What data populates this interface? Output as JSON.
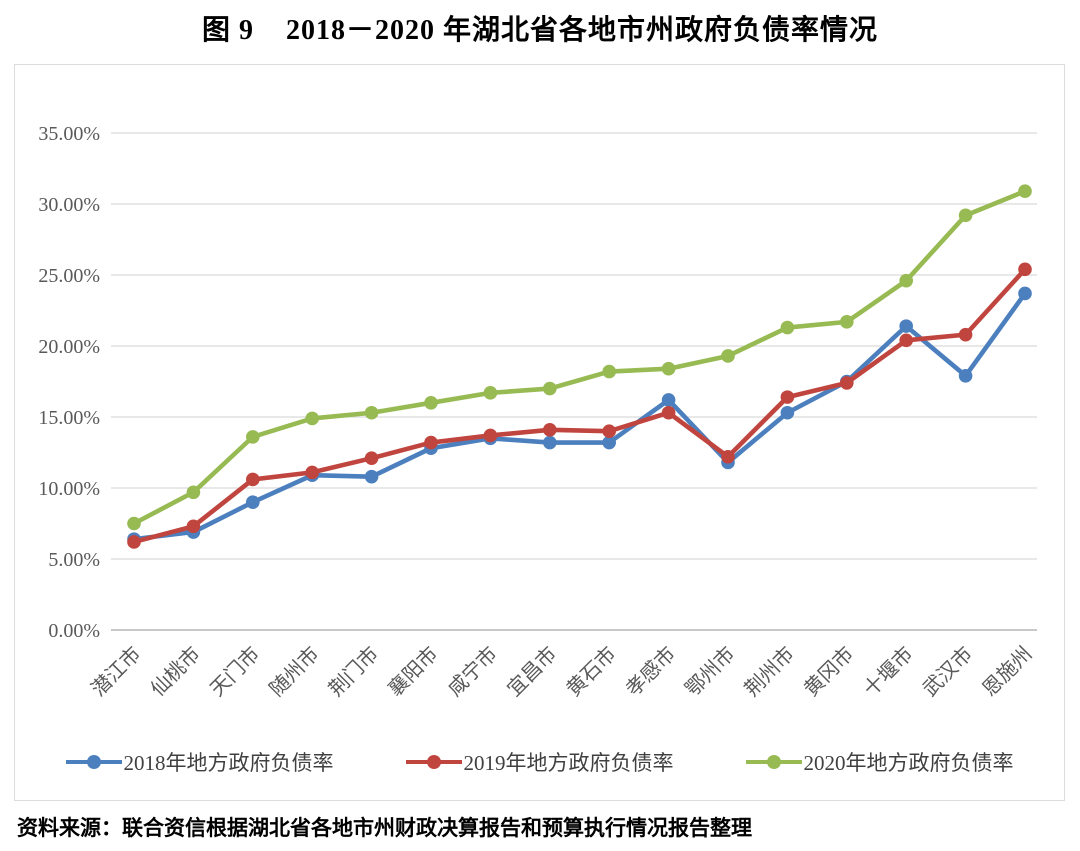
{
  "figure": {
    "title": "图 9    2018－2020 年湖北省各地市州政府负债率情况",
    "source_note": "资料来源：联合资信根据湖北省各地市州财政决算报告和预算执行情况报告整理"
  },
  "chart_data": {
    "type": "line",
    "title": "2018－2020 年湖北省各地市州政府负债率情况",
    "categories": [
      "潜江市",
      "仙桃市",
      "天门市",
      "随州市",
      "荆门市",
      "襄阳市",
      "咸宁市",
      "宜昌市",
      "黄石市",
      "孝感市",
      "鄂州市",
      "荆州市",
      "黄冈市",
      "十堰市",
      "武汉市",
      "恩施州"
    ],
    "series": [
      {
        "name": "2018年地方政府负债率",
        "color": "#4C7FBE",
        "values": [
          6.4,
          6.9,
          9.0,
          10.9,
          10.8,
          12.8,
          13.5,
          13.2,
          13.2,
          16.2,
          11.8,
          15.3,
          17.5,
          21.4,
          17.9,
          23.7
        ]
      },
      {
        "name": "2019年地方政府负债率",
        "color": "#C1453F",
        "values": [
          6.2,
          7.3,
          10.6,
          11.1,
          12.1,
          13.2,
          13.7,
          14.1,
          14.0,
          15.3,
          12.2,
          16.4,
          17.4,
          20.4,
          20.8,
          25.4
        ]
      },
      {
        "name": "2020年地方政府负债率",
        "color": "#97BA53",
        "values": [
          7.5,
          9.7,
          13.6,
          14.9,
          15.3,
          16.0,
          16.7,
          17.0,
          18.2,
          18.4,
          19.3,
          21.3,
          21.7,
          24.6,
          29.2,
          30.9
        ]
      }
    ],
    "ylim": [
      0,
      35
    ],
    "ytick_step": 5,
    "yticks": [
      "0.00%",
      "5.00%",
      "10.00%",
      "15.00%",
      "20.00%",
      "25.00%",
      "30.00%",
      "35.00%"
    ],
    "xlabel": "",
    "ylabel": "",
    "grid": true,
    "legend_position": "bottom",
    "marker": "circle"
  }
}
